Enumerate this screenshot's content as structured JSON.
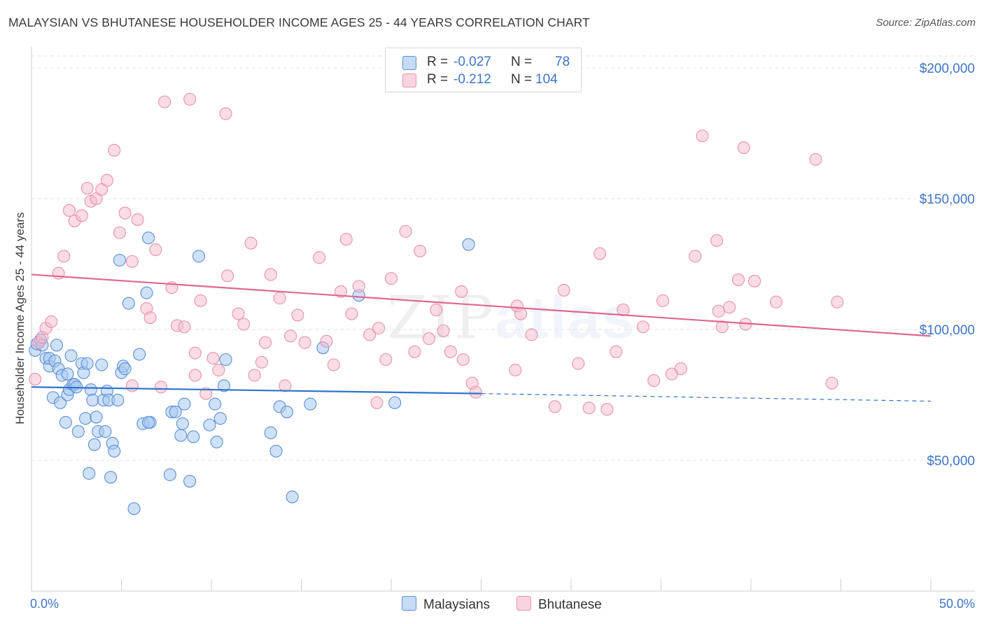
{
  "header": {
    "title": "MALAYSIAN VS BHUTANESE HOUSEHOLDER INCOME AGES 25 - 44 YEARS CORRELATION CHART",
    "source": "Source: ZipAtlas.com"
  },
  "watermark": {
    "zip": "ZIP",
    "atlas": "atlas"
  },
  "legend": {
    "rows": [
      {
        "r_label": "R =",
        "r_value": "-0.027",
        "n_label": "N =",
        "n_value": "78",
        "color": "#a8c8f0"
      },
      {
        "r_label": "R =",
        "r_value": "-0.212",
        "n_label": "N =",
        "n_value": "104",
        "color": "#f5b9cc"
      }
    ]
  },
  "bottom_legend": {
    "series1": "Malaysians",
    "series2": "Bhutanese"
  },
  "colors": {
    "malaysian_fill": "#a8c8f0",
    "malaysian_stroke": "#5b8fd6",
    "malaysian_line": "#2f73cc",
    "bhutanese_fill": "#f5b9cc",
    "bhutanese_stroke": "#e891ae",
    "bhutanese_line": "#e0668f",
    "axis_text": "#3d74c8"
  },
  "chart_data": {
    "type": "scatter",
    "title": "MALAYSIAN VS BHUTANESE HOUSEHOLDER INCOME AGES 25 - 44 YEARS CORRELATION CHART",
    "xlabel": "",
    "ylabel": "Householder Income Ages 25 - 44 years",
    "xlim": [
      0,
      50
    ],
    "ylim": [
      0,
      210000
    ],
    "x_tick_labels": [
      "0.0%",
      "50.0%"
    ],
    "y_ticks": [
      50000,
      100000,
      150000,
      200000
    ],
    "y_tick_labels": [
      "$50,000",
      "$100,000",
      "$150,000",
      "$200,000"
    ],
    "grid": true,
    "legend_position": "top-center",
    "series": [
      {
        "name": "Malaysians",
        "R": -0.027,
        "N": 78,
        "trend": {
          "x": [
            0,
            25,
            50
          ],
          "y": [
            78000,
            75500,
            72600
          ],
          "solid_until": 25
        },
        "points": [
          [
            0.2,
            92000
          ],
          [
            0.3,
            94500
          ],
          [
            0.5,
            96000
          ],
          [
            0.6,
            94000
          ],
          [
            0.8,
            89000
          ],
          [
            1.0,
            86000
          ],
          [
            1.0,
            89000
          ],
          [
            1.2,
            74000
          ],
          [
            1.3,
            88000
          ],
          [
            1.4,
            94000
          ],
          [
            1.5,
            85000
          ],
          [
            1.6,
            72000
          ],
          [
            1.7,
            82500
          ],
          [
            1.9,
            64500
          ],
          [
            2.0,
            75000
          ],
          [
            2.1,
            77000
          ],
          [
            2.2,
            90000
          ],
          [
            2.3,
            79000
          ],
          [
            2.4,
            79000
          ],
          [
            2.5,
            78000
          ],
          [
            2.6,
            61000
          ],
          [
            2.8,
            87000
          ],
          [
            2.9,
            83500
          ],
          [
            3.0,
            66000
          ],
          [
            3.1,
            87000
          ],
          [
            3.2,
            45000
          ],
          [
            3.3,
            77000
          ],
          [
            3.4,
            73000
          ],
          [
            3.5,
            56000
          ],
          [
            3.6,
            66500
          ],
          [
            3.7,
            61000
          ],
          [
            3.9,
            86500
          ],
          [
            4.0,
            73000
          ],
          [
            4.1,
            61000
          ],
          [
            4.2,
            76500
          ],
          [
            4.3,
            73000
          ],
          [
            4.4,
            43500
          ],
          [
            4.5,
            56500
          ],
          [
            4.6,
            53500
          ],
          [
            4.8,
            73000
          ],
          [
            4.9,
            126500
          ],
          [
            5.0,
            83500
          ],
          [
            5.1,
            86000
          ],
          [
            5.2,
            85000
          ],
          [
            5.4,
            110000
          ],
          [
            5.7,
            31500
          ],
          [
            6.0,
            90500
          ],
          [
            6.2,
            64000
          ],
          [
            6.4,
            114000
          ],
          [
            6.5,
            135000
          ],
          [
            6.6,
            64500
          ],
          [
            7.7,
            44500
          ],
          [
            7.8,
            68500
          ],
          [
            8.0,
            68500
          ],
          [
            8.3,
            59500
          ],
          [
            8.4,
            64000
          ],
          [
            8.5,
            71500
          ],
          [
            8.8,
            42000
          ],
          [
            9.0,
            59000
          ],
          [
            9.3,
            128000
          ],
          [
            9.9,
            63500
          ],
          [
            10.2,
            71500
          ],
          [
            10.3,
            57000
          ],
          [
            10.5,
            66000
          ],
          [
            10.7,
            78500
          ],
          [
            10.8,
            88500
          ],
          [
            13.3,
            60500
          ],
          [
            13.6,
            53500
          ],
          [
            13.8,
            70500
          ],
          [
            14.2,
            68500
          ],
          [
            14.5,
            36000
          ],
          [
            15.5,
            71500
          ],
          [
            16.2,
            93000
          ],
          [
            18.2,
            113000
          ],
          [
            20.2,
            72000
          ],
          [
            24.3,
            132500
          ],
          [
            2.0,
            83000
          ],
          [
            6.5,
            64500
          ]
        ]
      },
      {
        "name": "Bhutanese",
        "R": -0.212,
        "N": 104,
        "trend": {
          "x": [
            0,
            50
          ],
          "y": [
            121000,
            97500
          ]
        },
        "points": [
          [
            0.2,
            81000
          ],
          [
            0.4,
            95000
          ],
          [
            0.6,
            97000
          ],
          [
            0.8,
            100500
          ],
          [
            1.1,
            103000
          ],
          [
            1.5,
            121500
          ],
          [
            1.8,
            128000
          ],
          [
            2.1,
            145500
          ],
          [
            2.4,
            141500
          ],
          [
            2.8,
            143500
          ],
          [
            3.1,
            154000
          ],
          [
            3.3,
            149000
          ],
          [
            3.6,
            150000
          ],
          [
            3.9,
            153500
          ],
          [
            4.2,
            157000
          ],
          [
            4.6,
            168500
          ],
          [
            4.9,
            137000
          ],
          [
            5.2,
            144500
          ],
          [
            5.6,
            126000
          ],
          [
            5.9,
            142000
          ],
          [
            6.4,
            108000
          ],
          [
            6.6,
            104500
          ],
          [
            6.9,
            130500
          ],
          [
            7.2,
            78000
          ],
          [
            7.4,
            187000
          ],
          [
            7.8,
            116000
          ],
          [
            8.1,
            101500
          ],
          [
            8.5,
            101000
          ],
          [
            8.8,
            188000
          ],
          [
            9.1,
            82500
          ],
          [
            9.4,
            111000
          ],
          [
            9.7,
            75500
          ],
          [
            10.1,
            89000
          ],
          [
            10.4,
            84500
          ],
          [
            10.8,
            182500
          ],
          [
            10.9,
            120500
          ],
          [
            11.5,
            106000
          ],
          [
            11.8,
            102000
          ],
          [
            12.2,
            133000
          ],
          [
            12.4,
            82500
          ],
          [
            12.8,
            87500
          ],
          [
            13.0,
            95000
          ],
          [
            13.3,
            121000
          ],
          [
            13.8,
            112000
          ],
          [
            14.1,
            78500
          ],
          [
            14.4,
            97500
          ],
          [
            14.8,
            105500
          ],
          [
            15.2,
            95000
          ],
          [
            16.0,
            127500
          ],
          [
            16.4,
            95500
          ],
          [
            16.8,
            86500
          ],
          [
            17.2,
            114500
          ],
          [
            17.5,
            134500
          ],
          [
            17.8,
            106000
          ],
          [
            18.2,
            116500
          ],
          [
            18.8,
            98000
          ],
          [
            19.2,
            72000
          ],
          [
            19.3,
            100500
          ],
          [
            19.7,
            88500
          ],
          [
            20.0,
            119500
          ],
          [
            20.8,
            137500
          ],
          [
            21.3,
            91500
          ],
          [
            21.6,
            130000
          ],
          [
            22.1,
            96500
          ],
          [
            22.5,
            107500
          ],
          [
            22.9,
            99500
          ],
          [
            23.3,
            91500
          ],
          [
            23.9,
            114500
          ],
          [
            24.0,
            88500
          ],
          [
            24.5,
            79500
          ],
          [
            24.7,
            76000
          ],
          [
            26.9,
            84500
          ],
          [
            27.0,
            109000
          ],
          [
            27.2,
            106000
          ],
          [
            27.8,
            98000
          ],
          [
            29.1,
            70500
          ],
          [
            29.6,
            115000
          ],
          [
            30.4,
            87000
          ],
          [
            31.0,
            70000
          ],
          [
            31.6,
            129000
          ],
          [
            32.0,
            69500
          ],
          [
            32.5,
            91500
          ],
          [
            32.9,
            107500
          ],
          [
            34.0,
            101000
          ],
          [
            34.6,
            80500
          ],
          [
            35.1,
            111000
          ],
          [
            35.6,
            83000
          ],
          [
            36.1,
            85000
          ],
          [
            36.9,
            128000
          ],
          [
            37.3,
            174000
          ],
          [
            38.1,
            134000
          ],
          [
            38.2,
            107000
          ],
          [
            38.4,
            101000
          ],
          [
            38.8,
            108500
          ],
          [
            39.3,
            119000
          ],
          [
            39.6,
            169500
          ],
          [
            39.7,
            102000
          ],
          [
            40.2,
            118500
          ],
          [
            41.4,
            110500
          ],
          [
            43.6,
            165000
          ],
          [
            44.5,
            79500
          ],
          [
            44.8,
            110500
          ],
          [
            5.6,
            78500
          ],
          [
            9.1,
            91000
          ]
        ]
      }
    ]
  }
}
